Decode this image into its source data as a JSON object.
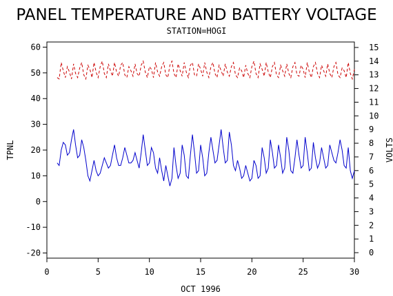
{
  "chart_data": {
    "type": "line",
    "title": "PANEL TEMPERATURE AND BATTERY VOLTAGE",
    "subtitle": "STATION=HOGI",
    "xlabel": "OCT 1996",
    "ylabel_left": "TPNL",
    "ylabel_right": "VOLTS",
    "xlim": [
      0,
      30
    ],
    "ylim_left": [
      -22,
      62
    ],
    "ylim_right": [
      -0.4,
      15.4
    ],
    "x_ticks": [
      0,
      5,
      10,
      15,
      20,
      25,
      30
    ],
    "y_ticks_left": [
      -20,
      -10,
      0,
      10,
      20,
      30,
      40,
      50,
      60
    ],
    "y_ticks_right": [
      0,
      1,
      2,
      3,
      4,
      5,
      6,
      7,
      8,
      9,
      10,
      11,
      12,
      13,
      14,
      15
    ],
    "grid": false,
    "series": [
      {
        "name": "",
        "axis": "left",
        "color": "#0000cc",
        "style": "solid",
        "x": [
          1.0,
          1.2,
          1.4,
          1.6,
          1.8,
          2.0,
          2.2,
          2.4,
          2.6,
          2.8,
          3.0,
          3.2,
          3.4,
          3.6,
          3.8,
          4.0,
          4.2,
          4.4,
          4.6,
          4.8,
          5.0,
          5.2,
          5.4,
          5.6,
          5.8,
          6.0,
          6.2,
          6.4,
          6.6,
          6.8,
          7.0,
          7.2,
          7.4,
          7.6,
          7.8,
          8.0,
          8.2,
          8.4,
          8.6,
          8.8,
          9.0,
          9.2,
          9.4,
          9.6,
          9.8,
          10.0,
          10.2,
          10.4,
          10.6,
          10.8,
          11.0,
          11.2,
          11.4,
          11.6,
          11.8,
          12.0,
          12.2,
          12.4,
          12.6,
          12.8,
          13.0,
          13.2,
          13.4,
          13.6,
          13.8,
          14.0,
          14.2,
          14.4,
          14.6,
          14.8,
          15.0,
          15.2,
          15.4,
          15.6,
          15.8,
          16.0,
          16.2,
          16.4,
          16.6,
          16.8,
          17.0,
          17.2,
          17.4,
          17.6,
          17.8,
          18.0,
          18.2,
          18.4,
          18.6,
          18.8,
          19.0,
          19.2,
          19.4,
          19.6,
          19.8,
          20.0,
          20.2,
          20.4,
          20.6,
          20.8,
          21.0,
          21.2,
          21.4,
          21.6,
          21.8,
          22.0,
          22.2,
          22.4,
          22.6,
          22.8,
          23.0,
          23.2,
          23.4,
          23.6,
          23.8,
          24.0,
          24.2,
          24.4,
          24.6,
          24.8,
          25.0,
          25.2,
          25.4,
          25.6,
          25.8,
          26.0,
          26.2,
          26.4,
          26.6,
          26.8,
          27.0,
          27.2,
          27.4,
          27.6,
          27.8,
          28.0,
          28.2,
          28.4,
          28.6,
          28.8,
          29.0,
          29.2,
          29.4,
          29.6,
          29.8,
          30.0
        ],
        "y": [
          15,
          14,
          20,
          23,
          22,
          18,
          19,
          24,
          28,
          22,
          17,
          18,
          24,
          21,
          16,
          10,
          8,
          12,
          16,
          12,
          10,
          11,
          14,
          17,
          15,
          13,
          14,
          18,
          22,
          17,
          14,
          14,
          17,
          21,
          18,
          15,
          15,
          16,
          19,
          16,
          13,
          19,
          26,
          20,
          14,
          15,
          21,
          19,
          13,
          11,
          17,
          12,
          8,
          14,
          10,
          6,
          9,
          21,
          14,
          9,
          11,
          22,
          18,
          10,
          9,
          18,
          26,
          19,
          11,
          12,
          22,
          17,
          10,
          11,
          19,
          25,
          20,
          15,
          16,
          22,
          28,
          21,
          15,
          16,
          27,
          22,
          14,
          12,
          16,
          13,
          9,
          10,
          14,
          11,
          8,
          9,
          16,
          14,
          9,
          10,
          21,
          17,
          11,
          13,
          24,
          19,
          13,
          14,
          22,
          17,
          11,
          13,
          25,
          20,
          12,
          11,
          17,
          24,
          18,
          13,
          14,
          25,
          19,
          12,
          13,
          23,
          17,
          13,
          15,
          21,
          17,
          13,
          14,
          22,
          19,
          16,
          15,
          19,
          24,
          20,
          14,
          13,
          21,
          12,
          9,
          12
        ]
      },
      {
        "name": "",
        "axis": "right",
        "color": "#cc0000",
        "style": "dashed",
        "x": [
          1.0,
          1.2,
          1.4,
          1.6,
          1.8,
          2.0,
          2.2,
          2.4,
          2.6,
          2.8,
          3.0,
          3.2,
          3.4,
          3.6,
          3.8,
          4.0,
          4.2,
          4.4,
          4.6,
          4.8,
          5.0,
          5.2,
          5.4,
          5.6,
          5.8,
          6.0,
          6.2,
          6.4,
          6.6,
          6.8,
          7.0,
          7.2,
          7.4,
          7.6,
          7.8,
          8.0,
          8.2,
          8.4,
          8.6,
          8.8,
          9.0,
          9.2,
          9.4,
          9.6,
          9.8,
          10.0,
          10.2,
          10.4,
          10.6,
          10.8,
          11.0,
          11.2,
          11.4,
          11.6,
          11.8,
          12.0,
          12.2,
          12.4,
          12.6,
          12.8,
          13.0,
          13.2,
          13.4,
          13.6,
          13.8,
          14.0,
          14.2,
          14.4,
          14.6,
          14.8,
          15.0,
          15.2,
          15.4,
          15.6,
          15.8,
          16.0,
          16.2,
          16.4,
          16.6,
          16.8,
          17.0,
          17.2,
          17.4,
          17.6,
          17.8,
          18.0,
          18.2,
          18.4,
          18.6,
          18.8,
          19.0,
          19.2,
          19.4,
          19.6,
          19.8,
          20.0,
          20.2,
          20.4,
          20.6,
          20.8,
          21.0,
          21.2,
          21.4,
          21.6,
          21.8,
          22.0,
          22.2,
          22.4,
          22.6,
          22.8,
          23.0,
          23.2,
          23.4,
          23.6,
          23.8,
          24.0,
          24.2,
          24.4,
          24.6,
          24.8,
          25.0,
          25.2,
          25.4,
          25.6,
          25.8,
          26.0,
          26.2,
          26.4,
          26.6,
          26.8,
          27.0,
          27.2,
          27.4,
          27.6,
          27.8,
          28.0,
          28.2,
          28.4,
          28.6,
          28.8,
          29.0,
          29.2,
          29.4,
          29.6,
          29.8,
          30.0
        ],
        "y": [
          12.8,
          12.7,
          13.9,
          13.3,
          12.8,
          13.6,
          13.2,
          12.7,
          13.8,
          13.1,
          12.8,
          13.5,
          13.9,
          13.0,
          12.7,
          13.7,
          13.4,
          12.8,
          13.9,
          13.2,
          12.8,
          13.6,
          14.0,
          13.1,
          12.8,
          13.8,
          13.3,
          12.9,
          13.9,
          13.2,
          12.9,
          13.7,
          13.9,
          13.0,
          12.8,
          13.6,
          13.3,
          12.9,
          13.8,
          13.1,
          12.9,
          13.7,
          14.0,
          13.2,
          12.8,
          13.6,
          13.4,
          12.8,
          13.9,
          13.2,
          12.9,
          13.6,
          13.9,
          13.0,
          12.8,
          13.7,
          14.0,
          13.1,
          12.8,
          13.8,
          13.3,
          12.9,
          13.9,
          13.2,
          12.8,
          13.7,
          13.9,
          13.0,
          12.9,
          13.8,
          13.4,
          12.9,
          13.9,
          13.2,
          12.8,
          13.6,
          13.9,
          13.1,
          12.8,
          13.7,
          13.3,
          12.9,
          13.8,
          13.2,
          12.9,
          13.6,
          13.9,
          13.0,
          12.8,
          13.5,
          13.3,
          12.8,
          13.7,
          13.1,
          12.8,
          13.6,
          14.0,
          13.1,
          12.8,
          13.8,
          13.4,
          12.9,
          13.9,
          13.2,
          12.8,
          13.6,
          13.9,
          13.0,
          12.8,
          13.7,
          13.3,
          12.9,
          13.8,
          13.1,
          12.8,
          13.6,
          13.9,
          13.0,
          12.9,
          13.7,
          13.4,
          12.8,
          13.9,
          13.2,
          12.8,
          13.6,
          13.9,
          13.1,
          12.8,
          13.7,
          13.3,
          12.9,
          13.8,
          13.1,
          12.8,
          13.6,
          13.9,
          13.0,
          12.8,
          13.5,
          13.3,
          12.8,
          13.9,
          13.1,
          12.7,
          13.4
        ]
      }
    ]
  }
}
